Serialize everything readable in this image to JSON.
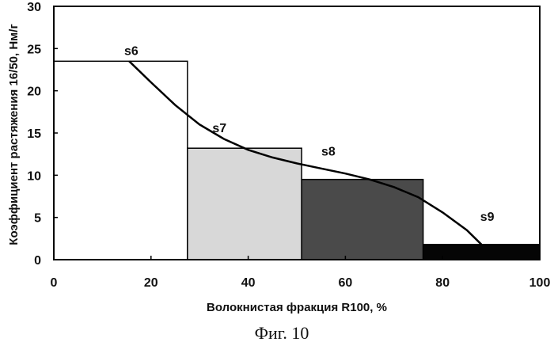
{
  "chart_data": {
    "type": "bar",
    "xlabel": "Волокнистая фракция R100, %",
    "ylabel": "Коэффициент растяжения 16/50, Нм/г",
    "xlim": [
      0,
      100
    ],
    "ylim": [
      0,
      30
    ],
    "x_ticks": [
      "0",
      "20",
      "40",
      "60",
      "80",
      "100"
    ],
    "y_ticks": [
      "0",
      "5",
      "10",
      "15",
      "20",
      "25",
      "30"
    ],
    "grid": false,
    "bars": [
      {
        "label": "s6",
        "x_start": 0,
        "x_end": 27.5,
        "value": 23.5,
        "fill": "#ffffff"
      },
      {
        "label": "s7",
        "x_start": 27.5,
        "x_end": 51,
        "value": 13.2,
        "fill": "#d8d8d8"
      },
      {
        "label": "s8",
        "x_start": 51,
        "x_end": 76,
        "value": 9.5,
        "fill": "#4a4a4a"
      },
      {
        "label": "s9",
        "x_start": 76,
        "x_end": 100,
        "value": 1.8,
        "fill": "#050505"
      }
    ],
    "curve": {
      "x": [
        15.5,
        20,
        25,
        30,
        35,
        40,
        45,
        50,
        55,
        60,
        65,
        70,
        75,
        80,
        85,
        88
      ],
      "y": [
        23.5,
        21,
        18.3,
        16,
        14.3,
        13,
        12.1,
        11.4,
        10.8,
        10.2,
        9.5,
        8.6,
        7.4,
        5.6,
        3.5,
        1.8
      ]
    },
    "caption": "Фиг. 10"
  }
}
